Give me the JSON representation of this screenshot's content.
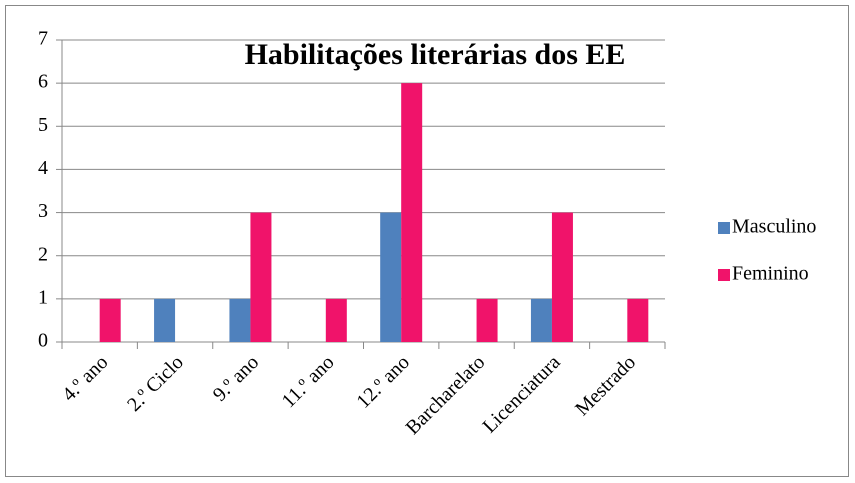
{
  "chart_data": {
    "type": "bar",
    "title": "Habilitações literárias dos EE",
    "categories": [
      "4.º ano",
      "2.º Ciclo",
      "9.º ano",
      "11.º ano",
      "12.º ano",
      "Barcharelato",
      "Licenciatura",
      "Mestrado"
    ],
    "series": [
      {
        "name": "Masculino",
        "color": "#4f81bd",
        "values": [
          0,
          1,
          1,
          0,
          3,
          0,
          1,
          0
        ]
      },
      {
        "name": "Feminino",
        "color": "#f0136a",
        "values": [
          1,
          0,
          3,
          1,
          6,
          1,
          3,
          1
        ]
      }
    ],
    "ylim": [
      0,
      7
    ],
    "yticks": [
      0,
      1,
      2,
      3,
      4,
      5,
      6,
      7
    ],
    "grid": true,
    "legend": "right"
  }
}
